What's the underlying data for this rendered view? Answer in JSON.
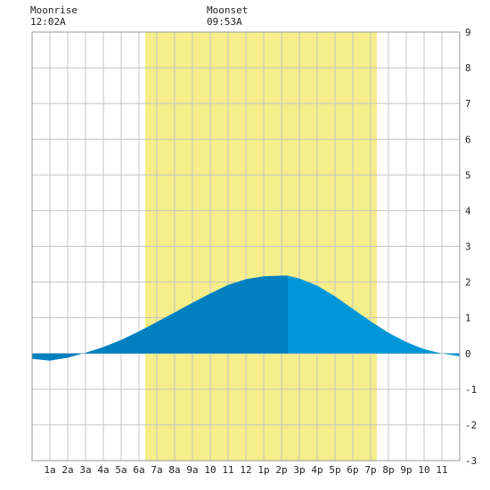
{
  "annotations": [
    {
      "name": "moonrise",
      "label": "Moonrise",
      "time": "12:02A"
    },
    {
      "name": "moonset",
      "label": "Moonset",
      "time": "09:53A"
    }
  ],
  "chart_data": {
    "type": "area",
    "title": "",
    "xlabel": "",
    "ylabel": "",
    "xlim": [
      0,
      24
    ],
    "ylim": [
      -3,
      9
    ],
    "grid": true,
    "x_tick_labels": [
      "1a",
      "2a",
      "3a",
      "4a",
      "5a",
      "6a",
      "7a",
      "8a",
      "9a",
      "10",
      "11",
      "12",
      "1p",
      "2p",
      "3p",
      "4p",
      "5p",
      "6p",
      "7p",
      "8p",
      "9p",
      "10",
      "11"
    ],
    "y_ticks": [
      -3,
      -2,
      -1,
      0,
      1,
      2,
      3,
      4,
      5,
      6,
      7,
      8,
      9
    ],
    "daylight": {
      "start": 6.35,
      "end": 19.35
    },
    "now_split_x": 14.35,
    "series": [
      {
        "x": [
          0,
          1,
          2,
          3,
          4,
          5,
          6,
          7,
          8,
          9,
          10,
          11,
          12,
          13,
          14,
          14.35,
          15,
          16,
          17,
          18,
          19,
          20,
          21,
          22,
          23,
          24
        ],
        "y": [
          -0.15,
          -0.2,
          -0.12,
          0.02,
          0.18,
          0.38,
          0.62,
          0.88,
          1.15,
          1.42,
          1.68,
          1.92,
          2.08,
          2.16,
          2.18,
          2.18,
          2.1,
          1.9,
          1.6,
          1.25,
          0.9,
          0.58,
          0.32,
          0.12,
          0.0,
          -0.08
        ]
      }
    ],
    "colors": {
      "daylight": "#f5ee8a",
      "tide_past": "#0080bf",
      "tide_future": "#0096d8",
      "grid": "#c4c4c4"
    }
  }
}
